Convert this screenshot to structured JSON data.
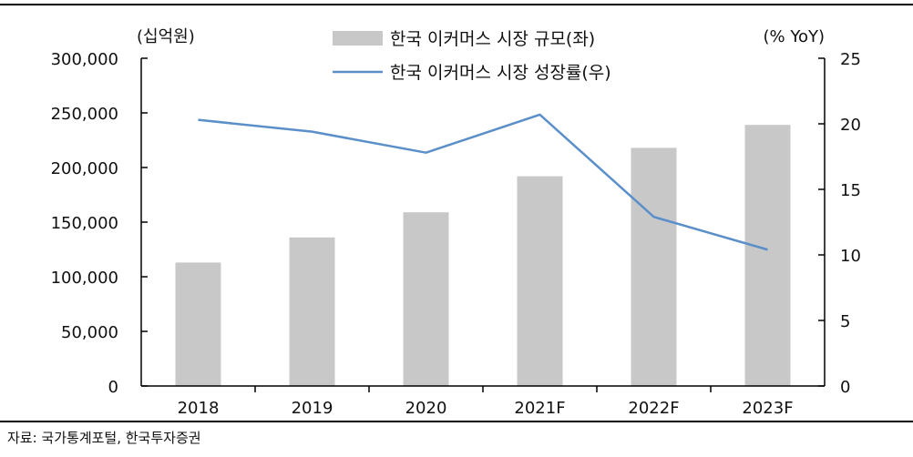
{
  "chart_data": {
    "type": "bar+line",
    "categories": [
      "2018",
      "2019",
      "2020",
      "2021F",
      "2022F",
      "2023F"
    ],
    "series": [
      {
        "name": "한국 이커머스 시장 규모(좌)",
        "type": "bar",
        "axis": "left",
        "values": [
          113000,
          136000,
          159000,
          192000,
          218000,
          239000
        ]
      },
      {
        "name": "한국 이커머스 시장 성장률(우)",
        "type": "line",
        "axis": "right",
        "values": [
          20.3,
          19.4,
          17.8,
          20.7,
          12.9,
          10.4
        ]
      }
    ],
    "left_axis": {
      "unit_label": "(십억원)",
      "ylim": [
        0,
        300000
      ],
      "ticks": [
        0,
        50000,
        100000,
        150000,
        200000,
        250000,
        300000
      ],
      "tick_labels": [
        "0",
        "50,000",
        "100,000",
        "150,000",
        "200,000",
        "250,000",
        "300,000"
      ]
    },
    "right_axis": {
      "unit_label": "(% YoY)",
      "ylim": [
        0,
        25
      ],
      "ticks": [
        0,
        5,
        10,
        15,
        20,
        25
      ],
      "tick_labels": [
        "0",
        "5",
        "10",
        "15",
        "20",
        "25"
      ]
    },
    "legend_position": "top-center",
    "grid": false,
    "colors": {
      "bar": "#c8c8c8",
      "line": "#5b8fc9",
      "axis": "#000000"
    }
  },
  "source": "자료: 국가통계포털, 한국투자증권"
}
